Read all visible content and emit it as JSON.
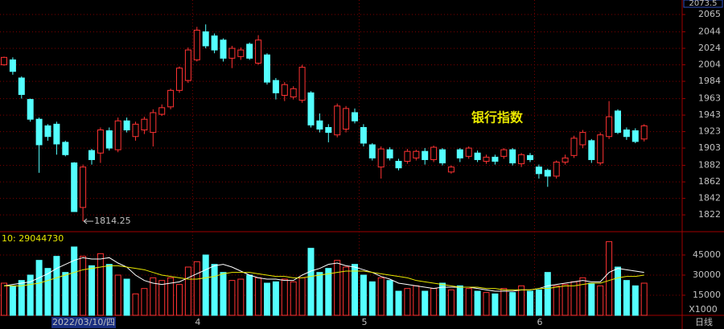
{
  "chart_data": [
    {
      "type": "candlestick",
      "title": "银行指数",
      "cursor_price": "2073.5",
      "low_label": "1814.25",
      "period": "日线",
      "cursor_date": "2022/03/10/四",
      "up_color": "#ff3232",
      "down_color": "#54ffff",
      "title_color": "#e8e800",
      "grid": true,
      "ylim": [
        1802.6,
        2082.6
      ],
      "yticks": [
        1822,
        1842,
        1862,
        1882,
        1903,
        1923,
        1943,
        1963,
        1984,
        2004,
        2024,
        2044,
        2065
      ],
      "categories": [
        null,
        null,
        null,
        null,
        null,
        null,
        null,
        null,
        null,
        null,
        null,
        null,
        null,
        null,
        null,
        null,
        null,
        null,
        null,
        null,
        null,
        null,
        "4",
        null,
        null,
        null,
        null,
        null,
        null,
        null,
        null,
        null,
        null,
        null,
        null,
        null,
        null,
        null,
        null,
        null,
        null,
        "5",
        null,
        null,
        null,
        null,
        null,
        null,
        null,
        null,
        null,
        null,
        null,
        null,
        null,
        null,
        null,
        null,
        null,
        null,
        null,
        "6",
        null,
        null,
        null,
        null,
        null,
        null,
        null,
        null,
        null,
        null,
        null,
        null
      ],
      "open": [
        2004,
        2010,
        1988,
        1962,
        1938,
        1930,
        1932,
        1910,
        1885,
        1831,
        1900,
        1897,
        1924,
        1901,
        1936,
        1917,
        1925,
        1922,
        1944,
        1953,
        1973,
        1985,
        2010,
        2044,
        2039,
        2034,
        2012,
        2014,
        2029,
        2006,
        2016,
        1985,
        1967,
        1965,
        1961,
        1970,
        1936,
        1928,
        1919,
        1926,
        1946,
        1928,
        1907,
        1880,
        1901,
        1887,
        1887,
        1891,
        1899,
        1889,
        1901,
        1874,
        1901,
        1893,
        1897,
        1887,
        1892,
        1893,
        1901,
        1884,
        1894,
        1880,
        1876,
        1869,
        1886,
        1894,
        1907,
        1912,
        1885,
        1917,
        1948,
        1925,
        1924,
        1914
      ],
      "high": [
        2014,
        2013,
        1990,
        1963,
        1940,
        1932,
        1935,
        1912,
        1886,
        1883,
        1902,
        1928,
        1928,
        1940,
        1940,
        1935,
        1941,
        1950,
        1956,
        1975,
        2002,
        2025,
        2050,
        2053,
        2042,
        2036,
        2027,
        2025,
        2031,
        2040,
        2018,
        1988,
        1983,
        1978,
        2004,
        1972,
        1945,
        1932,
        1957,
        1954,
        1951,
        1932,
        1909,
        1905,
        1904,
        1890,
        1902,
        1901,
        1903,
        1906,
        1903,
        1882,
        1903,
        1905,
        1900,
        1895,
        1895,
        1903,
        1903,
        1897,
        1897,
        1883,
        1878,
        1888,
        1895,
        1918,
        1925,
        1914,
        1922,
        1960,
        1950,
        1928,
        1927,
        1932
      ],
      "low": [
        2003,
        1992,
        1963,
        1935,
        1873,
        1912,
        1895,
        1893,
        1826,
        1814.25,
        1883,
        1885,
        1900,
        1898,
        1922,
        1912,
        1920,
        1905,
        1942,
        1950,
        1970,
        1982,
        2008,
        2024,
        2018,
        2008,
        2000,
        2010,
        2010,
        2004,
        1980,
        1962,
        1960,
        1962,
        1958,
        1928,
        1922,
        1910,
        1916,
        1922,
        1933,
        1905,
        1888,
        1866,
        1888,
        1876,
        1884,
        1888,
        1883,
        1886,
        1882,
        1872,
        1886,
        1890,
        1886,
        1884,
        1883,
        1890,
        1882,
        1880,
        1886,
        1866,
        1856,
        1866,
        1883,
        1891,
        1903,
        1885,
        1882,
        1914,
        1920,
        1913,
        1909,
        1911
      ],
      "close": [
        2013,
        1996,
        1968,
        1938,
        1907,
        1917,
        1908,
        1895,
        1826,
        1880,
        1889,
        1925,
        1903,
        1936,
        1925,
        1932,
        1938,
        1946,
        1952,
        1973,
        2000,
        2022,
        2046,
        2027,
        2022,
        2012,
        2024,
        2022,
        2012,
        2034,
        1983,
        1970,
        1980,
        1975,
        2001,
        1931,
        1926,
        1922,
        1954,
        1951,
        1936,
        1909,
        1891,
        1902,
        1891,
        1879,
        1899,
        1899,
        1889,
        1904,
        1885,
        1880,
        1891,
        1903,
        1889,
        1892,
        1887,
        1901,
        1885,
        1895,
        1889,
        1872,
        1869,
        1886,
        1891,
        1915,
        1922,
        1889,
        1919,
        1941,
        1922,
        1917,
        1911,
        1930
      ]
    },
    {
      "type": "volume",
      "label": "10: 29044730",
      "unit_label": "X1000",
      "label_color": "#e8e800",
      "ylim": [
        0,
        61200
      ],
      "yticks": [
        15000,
        30000,
        45000
      ],
      "values": [
        24000,
        22000,
        26000,
        30000,
        41000,
        35000,
        44000,
        32000,
        51000,
        44000,
        37000,
        46000,
        38000,
        30000,
        27000,
        16000,
        20000,
        28000,
        26000,
        28000,
        23000,
        36000,
        40000,
        45000,
        38000,
        32000,
        26000,
        27000,
        30000,
        28000,
        24000,
        25000,
        27000,
        25000,
        28000,
        50000,
        32000,
        35000,
        41000,
        36000,
        38000,
        30000,
        25000,
        28000,
        26000,
        18000,
        20000,
        22000,
        18000,
        20000,
        24000,
        19000,
        22000,
        20000,
        18000,
        17000,
        16000,
        20000,
        17000,
        22000,
        18000,
        19000,
        32000,
        22000,
        23000,
        25000,
        28000,
        24000,
        22000,
        55000,
        36000,
        26000,
        22000,
        24000
      ],
      "series": [
        {
          "color": "#ffffff",
          "values": [
            22000,
            23000,
            24000,
            25000,
            28000,
            31000,
            35000,
            38000,
            41000,
            43000,
            42000,
            42000,
            43000,
            39000,
            36000,
            30000,
            26000,
            24000,
            23000,
            24000,
            25000,
            28000,
            31000,
            34000,
            37000,
            38000,
            36000,
            33000,
            30000,
            28000,
            27000,
            27000,
            26000,
            26000,
            30000,
            33000,
            35000,
            38000,
            39000,
            37000,
            36000,
            34000,
            32000,
            29000,
            27000,
            24000,
            23000,
            22000,
            21000,
            20000,
            21000,
            21000,
            21000,
            21000,
            20000,
            19000,
            18000,
            18000,
            18000,
            19000,
            19000,
            20000,
            22000,
            23000,
            24000,
            25000,
            26000,
            25000,
            25000,
            32000,
            35000,
            34000,
            33000,
            32000
          ]
        },
        {
          "color": "#e8e800",
          "values": [
            22000,
            22000,
            22000,
            23000,
            24000,
            26000,
            28000,
            30000,
            32000,
            34000,
            35000,
            36000,
            37000,
            37000,
            36000,
            35000,
            34000,
            32000,
            30000,
            29000,
            28000,
            27000,
            27000,
            28000,
            29000,
            31000,
            32000,
            32000,
            32000,
            31000,
            30000,
            29000,
            29000,
            28000,
            28000,
            29000,
            30000,
            31000,
            32000,
            33000,
            33000,
            33000,
            32000,
            31000,
            30000,
            29000,
            28000,
            26000,
            25000,
            24000,
            23000,
            22000,
            21000,
            21000,
            21000,
            20000,
            20000,
            19000,
            19000,
            19000,
            19000,
            20000,
            20000,
            21000,
            22000,
            22000,
            23000,
            24000,
            24000,
            26000,
            28000,
            29000,
            29000,
            30000
          ]
        }
      ]
    }
  ]
}
